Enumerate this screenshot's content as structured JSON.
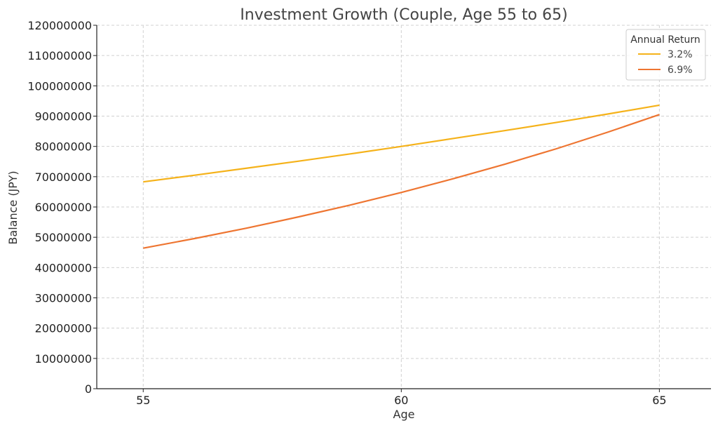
{
  "chart_data": {
    "type": "line",
    "title": "Investment Growth (Couple, Age 55 to 65)",
    "xlabel": "Age",
    "ylabel": "Balance (JPY)",
    "xlim": [
      54.1,
      66.0
    ],
    "ylim": [
      0,
      120000000
    ],
    "xticks": [
      55,
      60,
      65
    ],
    "yticks": [
      0,
      10000000,
      20000000,
      30000000,
      40000000,
      50000000,
      60000000,
      70000000,
      80000000,
      90000000,
      100000000,
      110000000,
      120000000
    ],
    "grid": true,
    "legend": {
      "title": "Annual Return",
      "placement": "top-right"
    },
    "x": [
      55,
      56,
      57,
      58,
      59,
      60,
      61,
      62,
      63,
      64,
      65
    ],
    "series": [
      {
        "name": "3.2%",
        "color": "#f5b21a",
        "values": [
          68300000,
          70500000,
          72800000,
          75100000,
          77500000,
          80000000,
          82600000,
          85200000,
          87900000,
          90700000,
          93600000
        ]
      },
      {
        "name": "6.9%",
        "color": "#ee7531",
        "values": [
          46400000,
          49600000,
          53000000,
          56700000,
          60600000,
          64800000,
          69300000,
          74100000,
          79200000,
          84700000,
          90500000
        ]
      }
    ]
  }
}
